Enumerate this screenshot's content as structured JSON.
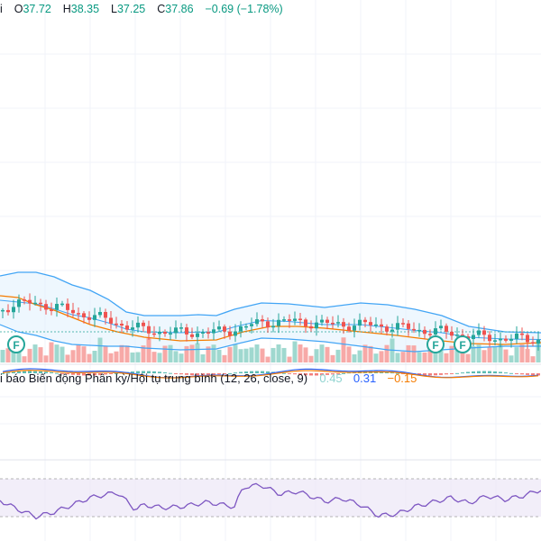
{
  "header": {
    "symbol_tail": "i",
    "open_label": "O",
    "open": "37.72",
    "high_label": "H",
    "high": "38.35",
    "low_label": "L",
    "low": "37.25",
    "close_label": "C",
    "close": "37.86",
    "change": "−0.69 (−1.78%)"
  },
  "macd": {
    "title": "i báo Biến động Phân kỳ/Hội tụ trung bình (12, 26, close, 9)",
    "v1": "0.45",
    "v2": "0.31",
    "v3": "−0.15"
  },
  "markers": [
    {
      "label": "F"
    },
    {
      "label": "F"
    },
    {
      "label": "F"
    }
  ],
  "colors": {
    "up": "#26a69a",
    "down": "#ef5350",
    "bb": "#42a5f5",
    "ma": "#f57c00",
    "rsi": "#7e57c2",
    "vol_up": "#9fd8cf",
    "vol_down": "#f7a9a7",
    "marker": "#26a69a"
  }
}
